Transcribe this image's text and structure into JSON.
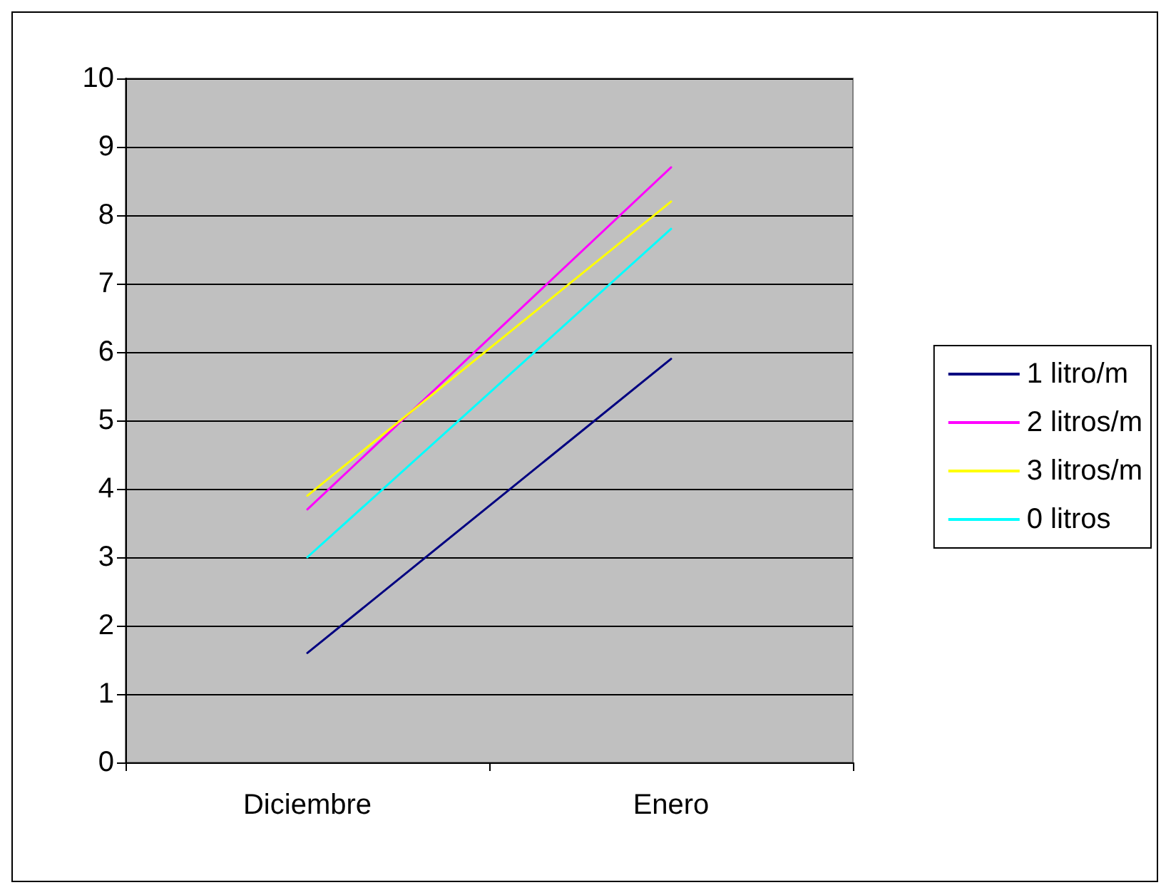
{
  "chart_data": {
    "type": "line",
    "categories": [
      "Diciembre",
      "Enero"
    ],
    "series": [
      {
        "name": "1 litro/m",
        "color": "#000080",
        "values": [
          1.6,
          5.9
        ]
      },
      {
        "name": "2 litros/m",
        "color": "#ff00ff",
        "values": [
          3.7,
          8.7
        ]
      },
      {
        "name": "3 litros/m",
        "color": "#ffff00",
        "values": [
          3.9,
          8.2
        ]
      },
      {
        "name": "0 litros",
        "color": "#00ffff",
        "values": [
          3.0,
          7.8
        ]
      }
    ],
    "ylim": [
      0,
      10
    ],
    "yticks": [
      0,
      1,
      2,
      3,
      4,
      5,
      6,
      7,
      8,
      9,
      10
    ],
    "grid": "y",
    "legend": "right",
    "marker": "none",
    "line_style": "solid"
  }
}
